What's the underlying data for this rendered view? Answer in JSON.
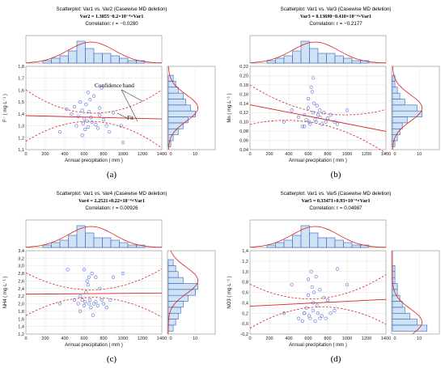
{
  "chart_data": [
    {
      "type": "scatter",
      "caption": "(a)",
      "header": [
        "Scatterplot: Var1    vs. Var2    (Casewise MD deletion)",
        "Var2   =   1.3855−0.2×10⁻⁴×Var1",
        "Correlation: r = −0.0280"
      ],
      "xlabel": "Annual precipitation ( mm )",
      "ylabel": "F⁻ ( mg·L⁻¹ )",
      "xlim": [
        0,
        1400
      ],
      "ylim": [
        1.1,
        1.8
      ],
      "xticks": [
        "0",
        "200",
        "400",
        "600",
        "800",
        "1000",
        "1200",
        "1400"
      ],
      "yticks": [
        "1,1",
        "1,2",
        "1,3",
        "1,4",
        "1,5",
        "1,6",
        "1,7",
        "1,8"
      ],
      "fit": [
        1.3855,
        -2e-05
      ],
      "band": [
        0.23,
        0.035,
        675
      ],
      "top_hist": [
        0,
        0,
        1,
        2,
        3,
        5,
        9,
        6,
        4,
        4,
        3,
        2,
        1,
        1,
        0,
        0
      ],
      "right_hist": [
        1,
        2,
        4,
        6,
        8,
        11,
        9,
        7,
        6,
        4,
        3,
        2
      ],
      "right_hist_xticks": [
        "0",
        "10"
      ],
      "annotations": [
        "Confidence band",
        "Fit"
      ],
      "points": [
        [
          420,
          1.44
        ],
        [
          470,
          1.4
        ],
        [
          500,
          1.46
        ],
        [
          520,
          1.3
        ],
        [
          540,
          1.38
        ],
        [
          560,
          1.5
        ],
        [
          580,
          1.43
        ],
        [
          590,
          1.32
        ],
        [
          600,
          1.36
        ],
        [
          610,
          1.27
        ],
        [
          620,
          1.48
        ],
        [
          630,
          1.34
        ],
        [
          640,
          1.29
        ],
        [
          650,
          1.42
        ],
        [
          660,
          1.52
        ],
        [
          670,
          1.37
        ],
        [
          680,
          1.33
        ],
        [
          700,
          1.55
        ],
        [
          720,
          1.31
        ],
        [
          740,
          1.28
        ],
        [
          760,
          1.45
        ],
        [
          780,
          1.62
        ],
        [
          800,
          1.35
        ],
        [
          830,
          1.3
        ],
        [
          860,
          1.25
        ],
        [
          900,
          1.41
        ],
        [
          350,
          1.25
        ],
        [
          580,
          1.22
        ],
        [
          760,
          1.39
        ],
        [
          980,
          1.3
        ],
        [
          640,
          1.58
        ],
        [
          1000,
          1.16
        ]
      ]
    },
    {
      "type": "scatter",
      "caption": "(b)",
      "header": [
        "Scatterplot: Var1    vs. Var3    (Casewise MD deletion)",
        "Var3   =   0.13690−0.410×10⁻⁴×Var1",
        "Correlation: r = −0.2177"
      ],
      "xlabel": "Annual precipitation ( mm )",
      "ylabel": "Mn ( mg·L⁻¹ )",
      "xlim": [
        0,
        1400
      ],
      "ylim": [
        0.04,
        0.22
      ],
      "xticks": [
        "0",
        "200",
        "400",
        "600",
        "800",
        "1000",
        "1200",
        "1400"
      ],
      "yticks": [
        "0,04",
        "0,06",
        "0,08",
        "0,10",
        "0,12",
        "0,14",
        "0,16",
        "0,18",
        "0,20",
        "0,22"
      ],
      "fit": [
        0.1369,
        -4.1e-05
      ],
      "band": [
        0.045,
        0.012,
        675
      ],
      "top_hist": [
        0,
        0,
        1,
        2,
        3,
        5,
        9,
        6,
        4,
        4,
        3,
        2,
        1,
        1,
        0,
        0
      ],
      "right_hist": [
        1,
        2,
        3,
        4,
        6,
        12,
        10,
        5,
        3,
        2,
        1,
        1
      ],
      "right_hist_xticks": [
        "0",
        "10"
      ],
      "annotations": [],
      "points": [
        [
          350,
          0.1
        ],
        [
          430,
          0.125
        ],
        [
          500,
          0.11
        ],
        [
          540,
          0.09
        ],
        [
          560,
          0.115
        ],
        [
          580,
          0.105
        ],
        [
          600,
          0.13
        ],
        [
          610,
          0.1
        ],
        [
          620,
          0.095
        ],
        [
          630,
          0.175
        ],
        [
          640,
          0.165
        ],
        [
          650,
          0.12
        ],
        [
          660,
          0.14
        ],
        [
          670,
          0.105
        ],
        [
          680,
          0.1
        ],
        [
          700,
          0.115
        ],
        [
          720,
          0.11
        ],
        [
          740,
          0.095
        ],
        [
          760,
          0.12
        ],
        [
          780,
          0.1
        ],
        [
          800,
          0.108
        ],
        [
          830,
          0.115
        ],
        [
          870,
          0.1
        ],
        [
          900,
          0.095
        ],
        [
          650,
          0.195
        ],
        [
          600,
          0.15
        ],
        [
          720,
          0.125
        ],
        [
          1000,
          0.125
        ],
        [
          560,
          0.09
        ],
        [
          690,
          0.135
        ]
      ]
    },
    {
      "type": "scatter",
      "caption": "(c)",
      "header": [
        "Scatterplot: Var1    vs. Var4    (Casewise MD deletion)",
        "Var4   =   2.2521+0.22×10⁻⁴×Var1",
        "Correlation: r = 0.00926"
      ],
      "xlabel": "Annual precipitation ( mm )",
      "ylabel": "NH4 ( mg·L⁻¹ )",
      "xlim": [
        0,
        1400
      ],
      "ylim": [
        1.2,
        3.4
      ],
      "xticks": [
        "0",
        "200",
        "400",
        "600",
        "800",
        "1000",
        "1200",
        "1400"
      ],
      "yticks": [
        "1,2",
        "1,4",
        "1,6",
        "1,8",
        "2,0",
        "2,2",
        "2,4",
        "2,6",
        "2,8",
        "3,0",
        "3,2",
        "3,4"
      ],
      "fit": [
        2.2521,
        2.2e-05
      ],
      "band": [
        0.6,
        0.1,
        675
      ],
      "top_hist": [
        0,
        0,
        1,
        2,
        3,
        5,
        9,
        6,
        4,
        4,
        3,
        2,
        1,
        1,
        0,
        0
      ],
      "right_hist": [
        2,
        3,
        4,
        5,
        6,
        8,
        11,
        12,
        6,
        4,
        3,
        2
      ],
      "right_hist_xticks": [
        "0",
        "10"
      ],
      "annotations": [],
      "points": [
        [
          350,
          2.0
        ],
        [
          430,
          2.9
        ],
        [
          500,
          2.1
        ],
        [
          540,
          2.0
        ],
        [
          560,
          2.2
        ],
        [
          580,
          2.1
        ],
        [
          600,
          1.95
        ],
        [
          610,
          2.05
        ],
        [
          620,
          2.3
        ],
        [
          630,
          2.6
        ],
        [
          640,
          2.5
        ],
        [
          650,
          2.0
        ],
        [
          660,
          2.1
        ],
        [
          670,
          1.9
        ],
        [
          680,
          2.8
        ],
        [
          700,
          2.0
        ],
        [
          720,
          2.05
        ],
        [
          740,
          1.95
        ],
        [
          760,
          2.4
        ],
        [
          780,
          2.1
        ],
        [
          800,
          2.0
        ],
        [
          830,
          1.9
        ],
        [
          870,
          2.1
        ],
        [
          900,
          2.7
        ],
        [
          650,
          2.7
        ],
        [
          600,
          2.9
        ],
        [
          720,
          2.7
        ],
        [
          1000,
          2.8
        ],
        [
          560,
          1.8
        ],
        [
          690,
          1.7
        ]
      ]
    },
    {
      "type": "scatter",
      "caption": "(d)",
      "header": [
        "Scatterplot: Var1    vs. Var5    (Casewise MD deletion)",
        "Var5   =   0.33471+0.93×10⁻⁴×Var1",
        "Correlation: r = 0.04987"
      ],
      "xlabel": "Annual precipitation ( mm )",
      "ylabel": "NO3 ( mg·L⁻¹ )",
      "xlim": [
        0,
        1400
      ],
      "ylim": [
        -0.2,
        1.4
      ],
      "xticks": [
        "0",
        "200",
        "400",
        "600",
        "800",
        "1000",
        "1200",
        "1400"
      ],
      "yticks": [
        "-0,2",
        "0,0",
        "0,2",
        "0,4",
        "0,6",
        "0,8",
        "1,0",
        "1,2",
        "1,4"
      ],
      "fit": [
        0.33471,
        9.3e-05
      ],
      "band": [
        0.45,
        0.08,
        675
      ],
      "top_hist": [
        0,
        0,
        1,
        2,
        3,
        5,
        9,
        6,
        4,
        4,
        3,
        2,
        1,
        1,
        0,
        0
      ],
      "right_hist": [
        14,
        10,
        7,
        5,
        4,
        3,
        2,
        2,
        1,
        1,
        1,
        0
      ],
      "right_hist_xticks": [
        "0",
        "10"
      ],
      "annotations": [],
      "points": [
        [
          350,
          0.2
        ],
        [
          430,
          0.75
        ],
        [
          500,
          0.1
        ],
        [
          540,
          0.05
        ],
        [
          560,
          0.2
        ],
        [
          580,
          0.3
        ],
        [
          600,
          0.55
        ],
        [
          610,
          0.15
        ],
        [
          620,
          0.1
        ],
        [
          630,
          1.0
        ],
        [
          640,
          0.7
        ],
        [
          650,
          0.25
        ],
        [
          660,
          0.6
        ],
        [
          670,
          0.05
        ],
        [
          680,
          0.9
        ],
        [
          700,
          0.2
        ],
        [
          720,
          0.65
        ],
        [
          740,
          0.15
        ],
        [
          760,
          0.5
        ],
        [
          780,
          0.1
        ],
        [
          800,
          0.45
        ],
        [
          830,
          0.2
        ],
        [
          870,
          0.25
        ],
        [
          900,
          1.05
        ],
        [
          650,
          0.4
        ],
        [
          600,
          0.85
        ],
        [
          720,
          0.1
        ],
        [
          1000,
          0.75
        ],
        [
          560,
          0.2
        ],
        [
          690,
          0.35
        ]
      ]
    }
  ]
}
